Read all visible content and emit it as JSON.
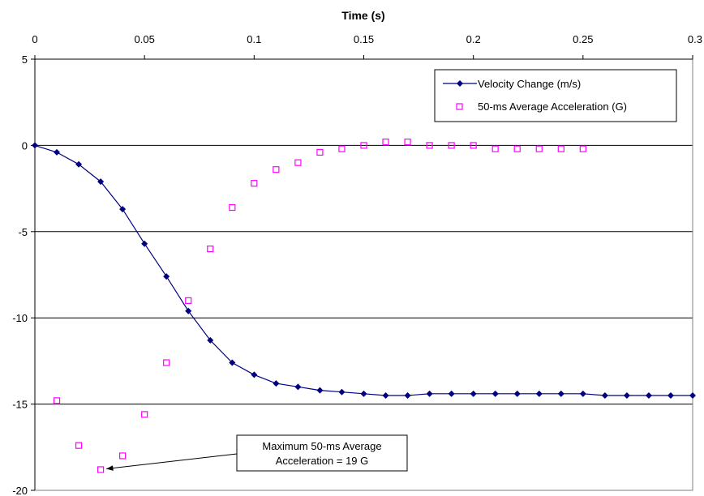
{
  "chart_data": {
    "type": "scatter",
    "xlabel": "Time (s)",
    "ylabel": "",
    "xlim": [
      0,
      0.3
    ],
    "ylim": [
      -20,
      5
    ],
    "x_ticks": [
      "0",
      "0.05",
      "0.1",
      "0.15",
      "0.2",
      "0.25",
      "0.3"
    ],
    "x_tick_values": [
      0,
      0.05,
      0.1,
      0.15,
      0.2,
      0.25,
      0.3
    ],
    "y_ticks": [
      "5",
      "0",
      "-5",
      "-10",
      "-15",
      "-20"
    ],
    "y_tick_values": [
      5,
      0,
      -5,
      -10,
      -15,
      -20
    ],
    "x_axis_position": "top",
    "grid": "horizontal",
    "legend_position": "top-right",
    "series": [
      {
        "name": "Velocity Change (m/s)",
        "style": "line-with-diamond-markers",
        "color": "#000080",
        "x": [
          0,
          0.01,
          0.02,
          0.03,
          0.04,
          0.05,
          0.06,
          0.07,
          0.08,
          0.09,
          0.1,
          0.11,
          0.12,
          0.13,
          0.14,
          0.15,
          0.16,
          0.17,
          0.18,
          0.19,
          0.2,
          0.21,
          0.22,
          0.23,
          0.24,
          0.25,
          0.26,
          0.27,
          0.28,
          0.29,
          0.3
        ],
        "y": [
          0,
          -0.4,
          -1.1,
          -2.1,
          -3.7,
          -5.7,
          -7.6,
          -9.6,
          -11.3,
          -12.6,
          -13.3,
          -13.8,
          -14.0,
          -14.2,
          -14.3,
          -14.4,
          -14.5,
          -14.5,
          -14.4,
          -14.4,
          -14.4,
          -14.4,
          -14.4,
          -14.4,
          -14.4,
          -14.4,
          -14.5,
          -14.5,
          -14.5,
          -14.5,
          -14.5
        ]
      },
      {
        "name": "50-ms Average Acceleration (G)",
        "style": "open-square-markers",
        "color": "#FF00FF",
        "x": [
          0.01,
          0.02,
          0.03,
          0.04,
          0.05,
          0.06,
          0.07,
          0.08,
          0.09,
          0.1,
          0.11,
          0.12,
          0.13,
          0.14,
          0.15,
          0.16,
          0.17,
          0.18,
          0.19,
          0.2,
          0.21,
          0.22,
          0.23,
          0.24,
          0.25
        ],
        "y": [
          -14.8,
          -17.4,
          -18.8,
          -18.0,
          -15.6,
          -12.6,
          -9.0,
          -6.0,
          -3.6,
          -2.2,
          -1.4,
          -1.0,
          -0.4,
          -0.2,
          0.0,
          0.2,
          0.2,
          0.0,
          0.0,
          0.0,
          -0.2,
          -0.2,
          -0.2,
          -0.2,
          -0.2
        ]
      }
    ],
    "annotation": {
      "lines": [
        "Maximum 50-ms Average",
        "Acceleration = 19 G"
      ],
      "points_to": {
        "x": 0.03,
        "y": -18.8
      }
    }
  }
}
